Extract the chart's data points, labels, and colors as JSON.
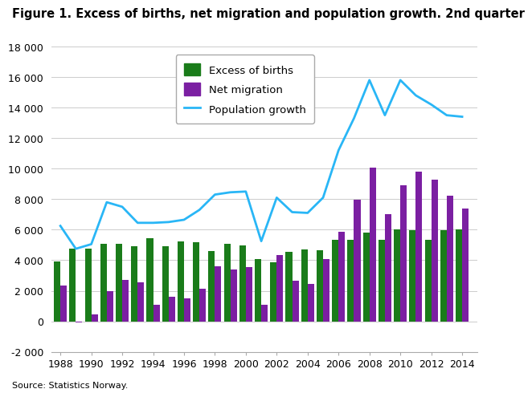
{
  "years": [
    1988,
    1989,
    1990,
    1991,
    1992,
    1993,
    1994,
    1995,
    1996,
    1997,
    1998,
    1999,
    2000,
    2001,
    2002,
    2003,
    2004,
    2005,
    2006,
    2007,
    2008,
    2009,
    2010,
    2011,
    2012,
    2013,
    2014
  ],
  "excess_births": [
    3900,
    4750,
    4750,
    5100,
    5100,
    4900,
    5450,
    4900,
    5250,
    5200,
    4600,
    5100,
    4950,
    4100,
    3850,
    4550,
    4700,
    4650,
    5350,
    5350,
    5800,
    5350,
    6000,
    5950,
    5350,
    5950,
    6000
  ],
  "net_migration": [
    2350,
    -100,
    450,
    1950,
    2700,
    2550,
    1100,
    1600,
    1500,
    2150,
    3600,
    3400,
    3550,
    1100,
    4350,
    2650,
    2450,
    4100,
    5850,
    7950,
    10050,
    7000,
    8900,
    9800,
    9300,
    8250,
    7400
  ],
  "population_growth": [
    6250,
    4750,
    5050,
    7800,
    7500,
    6450,
    6450,
    6500,
    6650,
    7300,
    8300,
    8450,
    8500,
    5250,
    8100,
    7150,
    7100,
    8100,
    11200,
    13300,
    15800,
    13500,
    15800,
    14800,
    14200,
    13500,
    13400
  ],
  "bar_width": 0.42,
  "excess_births_color": "#1a7c1a",
  "net_migration_color": "#7b1fa2",
  "population_growth_color": "#29b6f6",
  "background_color": "#ffffff",
  "grid_color": "#cccccc",
  "title": "Figure 1. Excess of births, net migration and population growth. 2nd quarter",
  "ylim": [
    -2000,
    18000
  ],
  "yticks": [
    -2000,
    0,
    2000,
    4000,
    6000,
    8000,
    10000,
    12000,
    14000,
    16000,
    18000
  ],
  "ytick_labels": [
    "-2 000",
    "0",
    "2 000",
    "4 000",
    "6 000",
    "8 000",
    "10 000",
    "12 000",
    "14 000",
    "16 000",
    "18 000"
  ],
  "source_text": "Source: Statistics Norway.",
  "legend_labels": [
    "Excess of births",
    "Net migration",
    "Population growth"
  ],
  "title_fontsize": 10.5,
  "tick_fontsize": 9,
  "legend_fontsize": 9.5
}
